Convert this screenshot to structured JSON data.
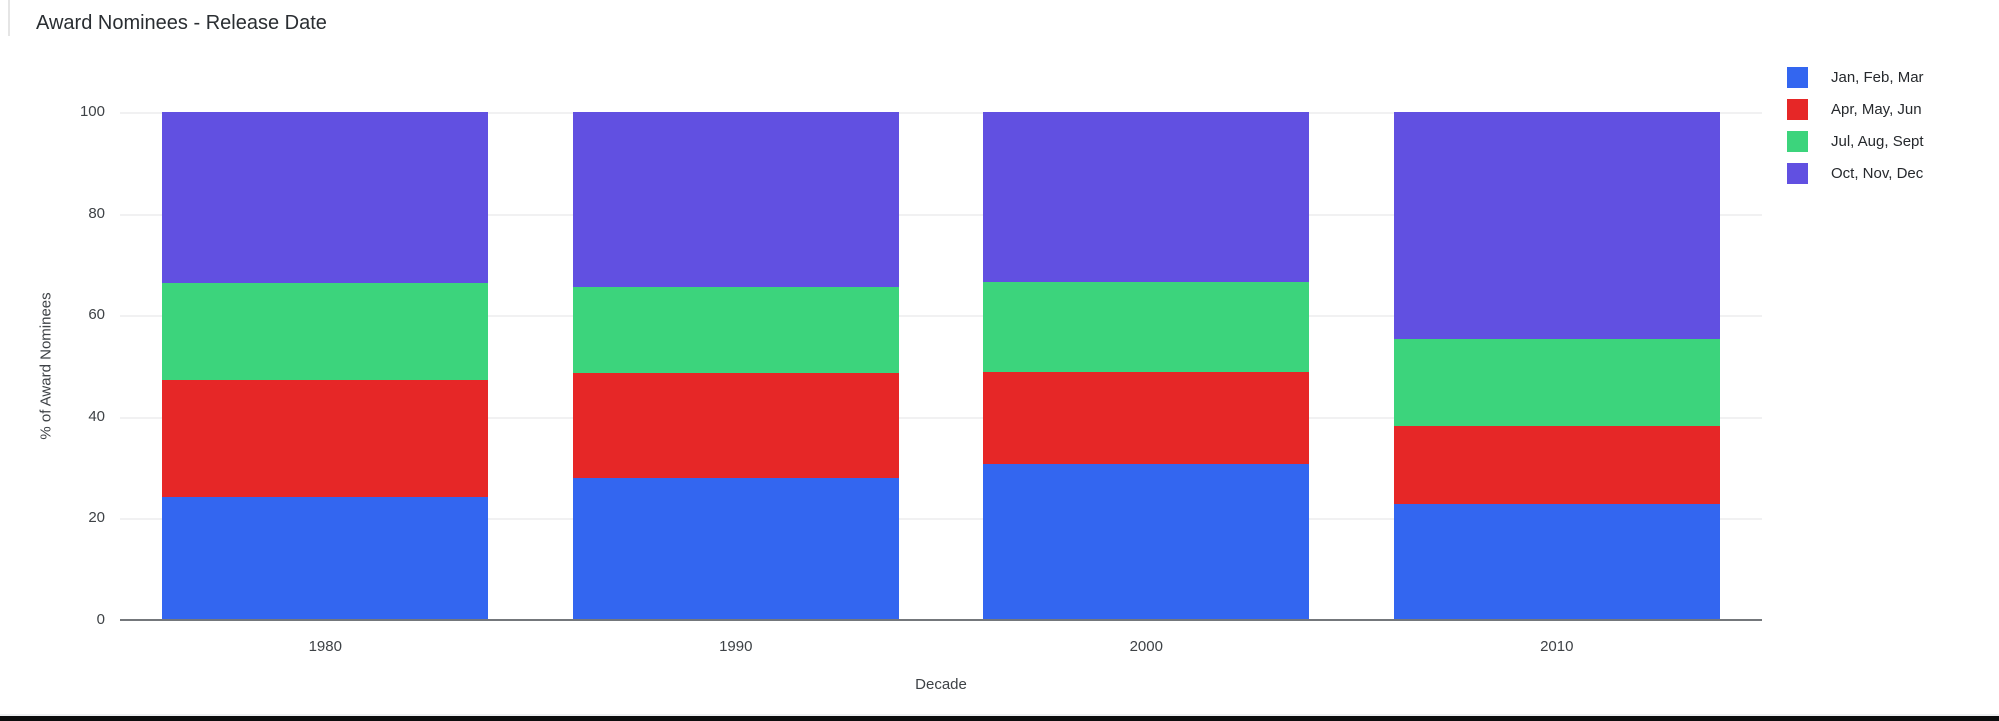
{
  "chart_data": {
    "type": "bar",
    "stacked": true,
    "stack_unit": "percent",
    "title": "Award Nominees - Release Date",
    "xlabel": "Decade",
    "ylabel": "% of Award Nominees",
    "categories": [
      "1980",
      "1990",
      "2000",
      "2010"
    ],
    "series": [
      {
        "name": "Jan, Feb, Mar",
        "color": "#3366F0",
        "values": [
          24.2,
          28.0,
          30.8,
          22.9
        ]
      },
      {
        "name": "Apr, May, Jun",
        "color": "#E62727",
        "values": [
          23.0,
          20.7,
          18.0,
          15.2
        ]
      },
      {
        "name": "Jul, Aug, Sept",
        "color": "#3CD47C",
        "values": [
          19.2,
          16.8,
          17.8,
          17.2
        ]
      },
      {
        "name": "Oct, Nov, Dec",
        "color": "#6150E1",
        "values": [
          33.6,
          34.5,
          33.4,
          44.7
        ]
      }
    ],
    "ylim": [
      0,
      100
    ],
    "yticks": [
      0,
      20,
      40,
      60,
      80,
      100
    ],
    "grid": true,
    "legend_position": "right",
    "background": "#ffffff",
    "axis_color": "#74777b",
    "gridline_color": "#f1f1f2"
  }
}
